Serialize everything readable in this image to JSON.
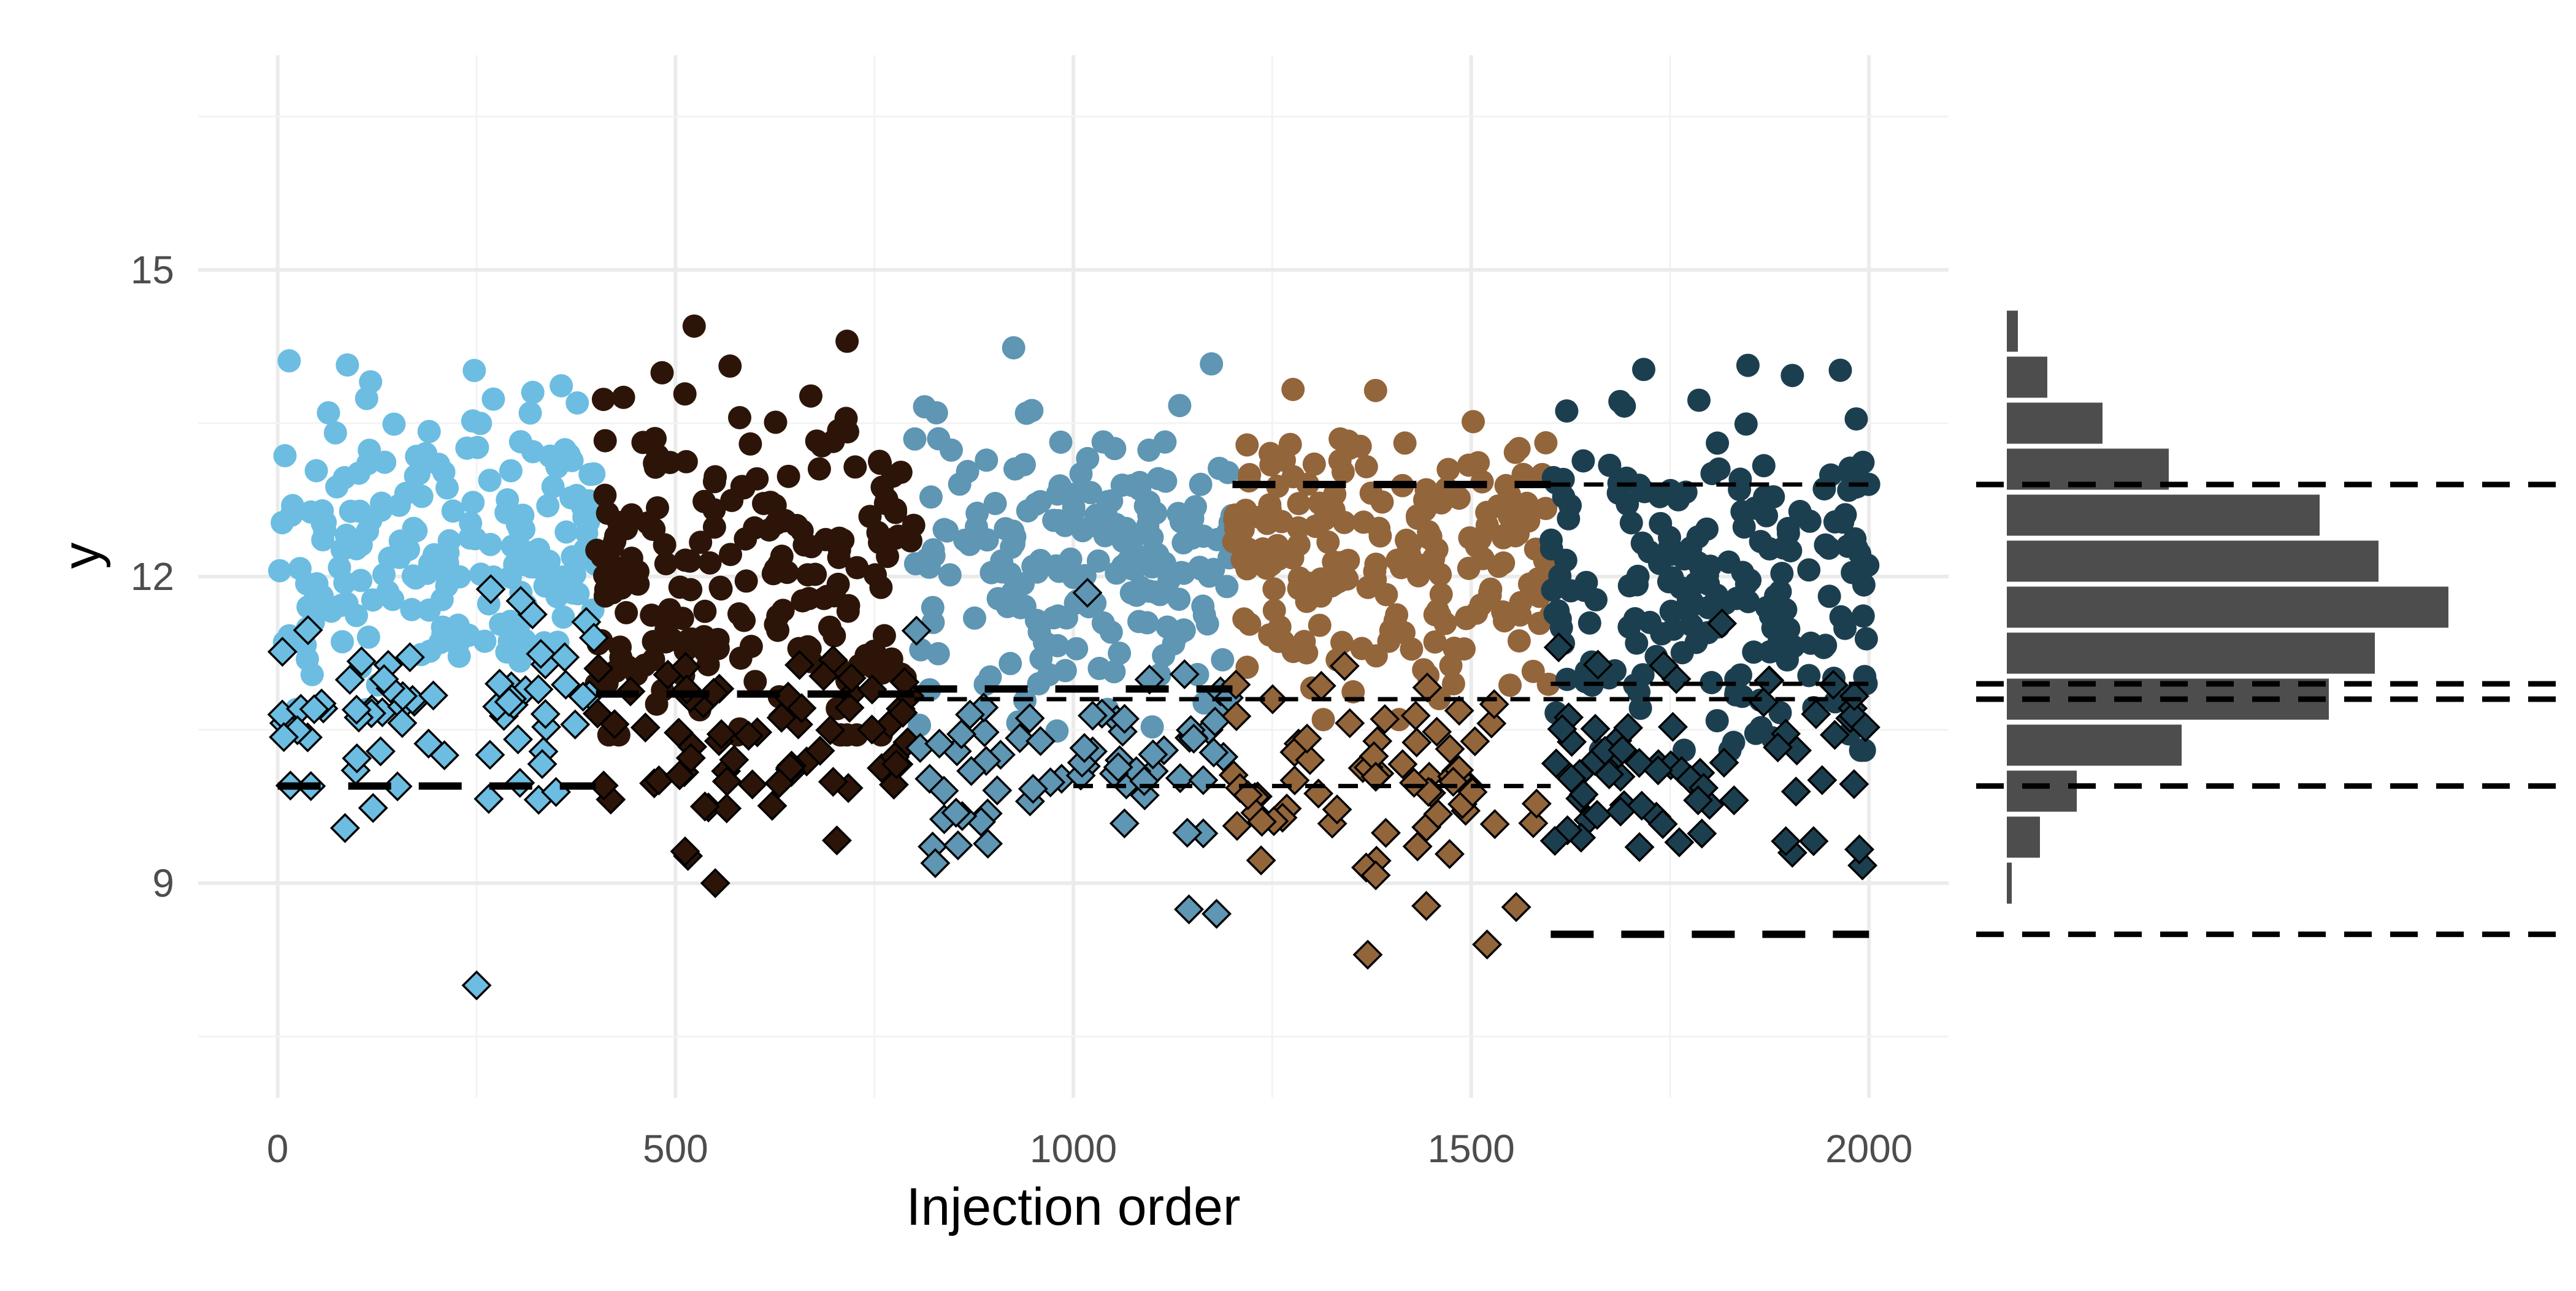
{
  "chart_data": {
    "type": "scatter",
    "title": "",
    "xlabel": "Injection order",
    "ylabel": "y",
    "xlim": [
      -100,
      2100
    ],
    "ylim": [
      6.9,
      17.1
    ],
    "x_ticks": [
      0,
      500,
      1000,
      1500,
      2000
    ],
    "y_ticks": [
      9,
      12,
      15
    ],
    "grid": true,
    "legend": "none",
    "batch_colors": [
      "#6cbde1",
      "#2c1508",
      "#5e96b3",
      "#93653b",
      "#1c3f50"
    ],
    "batches": [
      {
        "x_range": [
          0,
          400
        ],
        "center": 12.3,
        "sd": 0.75
      },
      {
        "x_range": [
          400,
          800
        ],
        "center": 12.05,
        "sd": 0.85
      },
      {
        "x_range": [
          800,
          1200
        ],
        "center": 12.05,
        "sd": 0.75
      },
      {
        "x_range": [
          1200,
          1600
        ],
        "center": 12.2,
        "sd": 0.7
      },
      {
        "x_range": [
          1600,
          2000
        ],
        "center": 11.9,
        "sd": 0.85
      }
    ],
    "qc_points": {
      "marker": "diamond",
      "outline": "#000000",
      "note_values": "diamond markers below each batch",
      "batch_centers": [
        10.6,
        10.4,
        10.1,
        9.9,
        10.2
      ],
      "outliers": [
        [
          250,
          8.0
        ],
        [
          1370,
          8.3
        ],
        [
          1520,
          8.4
        ],
        [
          1180,
          8.7
        ],
        [
          550,
          9.0
        ]
      ]
    },
    "reference_lines": [
      {
        "y": 12.9,
        "x_range": [
          1200,
          1600
        ],
        "style": "long-dash"
      },
      {
        "y": 12.9,
        "x_range": [
          1600,
          2000
        ],
        "style": "dash"
      },
      {
        "y": 10.95,
        "x_range": [
          1600,
          2000
        ],
        "style": "dash"
      },
      {
        "y": 10.9,
        "x_range": [
          800,
          1200
        ],
        "style": "long-dash"
      },
      {
        "y": 10.85,
        "x_range": [
          400,
          800
        ],
        "style": "long-dash"
      },
      {
        "y": 10.8,
        "x_range": [
          800,
          2000
        ],
        "style": "dash"
      },
      {
        "y": 9.95,
        "x_range": [
          0,
          400
        ],
        "style": "long-dash"
      },
      {
        "y": 9.95,
        "x_range": [
          1000,
          1600
        ],
        "style": "dash"
      },
      {
        "y": 8.5,
        "x_range": [
          1600,
          2000
        ],
        "style": "long-dash"
      }
    ],
    "marginal_histogram": {
      "orientation": "horizontal",
      "bar_color": "#4d4d4d",
      "bin_width": 0.45,
      "bins": [
        {
          "y": 9.0,
          "count": 2
        },
        {
          "y": 9.45,
          "count": 18
        },
        {
          "y": 9.9,
          "count": 38
        },
        {
          "y": 10.35,
          "count": 95
        },
        {
          "y": 10.8,
          "count": 175
        },
        {
          "y": 11.25,
          "count": 200
        },
        {
          "y": 11.7,
          "count": 240
        },
        {
          "y": 12.15,
          "count": 202
        },
        {
          "y": 12.6,
          "count": 170
        },
        {
          "y": 13.05,
          "count": 88
        },
        {
          "y": 13.5,
          "count": 52
        },
        {
          "y": 13.95,
          "count": 22
        },
        {
          "y": 14.4,
          "count": 6
        }
      ],
      "reference_lines_y": [
        12.9,
        10.95,
        10.8,
        9.95,
        8.5
      ]
    }
  }
}
